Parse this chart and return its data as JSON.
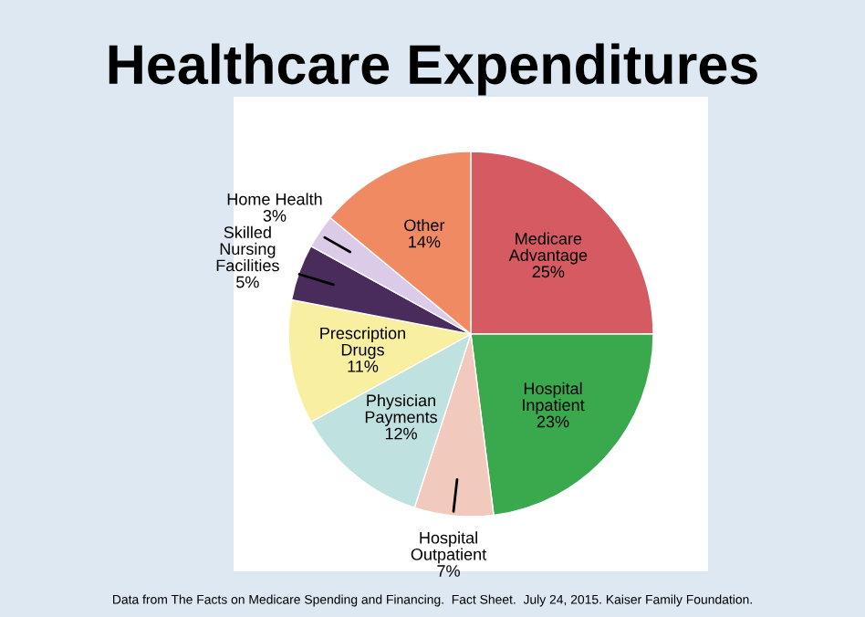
{
  "chart_data": {
    "type": "pie",
    "title": "Healthcare Expenditures",
    "categories": [
      "Medicare\nAdvantage",
      "Hospital\nInpatient",
      "Hospital\nOutpatient",
      "Physician\nPayments",
      "Prescription\nDrugs",
      "Skilled\nNursing\nFacilities",
      "Home Health",
      "Other"
    ],
    "values": [
      25,
      23,
      7,
      12,
      11,
      5,
      3,
      14
    ],
    "value_labels": [
      "25%",
      "23%",
      "7%",
      "12%",
      "11%",
      "5%",
      "3%",
      "14%"
    ],
    "colors": [
      "#d65a62",
      "#3aa84c",
      "#f1cabd",
      "#bfe2e0",
      "#f8f0a0",
      "#4a2c5c",
      "#dccbe8",
      "#f08a62"
    ],
    "annotations": [
      "Data from The Facts on Medicare Spending and Financing.  Fact Sheet.  July 24, 2015. Kaiser Family Foundation."
    ]
  }
}
